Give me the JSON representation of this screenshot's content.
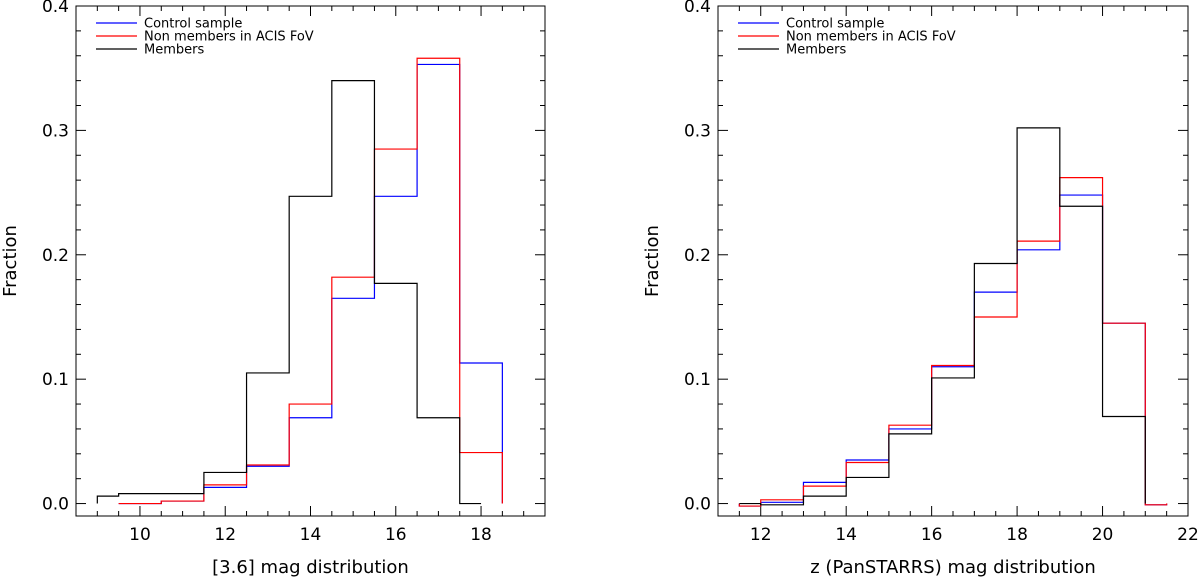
{
  "chart_data": [
    {
      "type": "histogram",
      "title": "",
      "xlabel": "[3.6] mag distribution",
      "ylabel": "Fraction",
      "xlim": [
        8.5,
        19.5
      ],
      "ylim": [
        -0.01,
        0.4
      ],
      "xticks": [
        10,
        12,
        14,
        16,
        18
      ],
      "xtick_labels": [
        "10",
        "12",
        "14",
        "16",
        "18"
      ],
      "yticks": [
        0.0,
        0.1,
        0.2,
        0.3,
        0.4
      ],
      "ytick_labels": [
        "0.0",
        "0.1",
        "0.2",
        "0.3",
        "0.4"
      ],
      "legend_position": "top-left",
      "series": [
        {
          "name": "Control sample",
          "color": "#0000ff",
          "bin_edges": [
            9.5,
            10.5,
            11.5,
            12.5,
            13.5,
            14.5,
            15.5,
            16.5,
            17.5,
            18.5
          ],
          "values": [
            0.0,
            0.002,
            0.013,
            0.03,
            0.069,
            0.165,
            0.247,
            0.353,
            0.113
          ]
        },
        {
          "name": "Non members in ACIS FoV",
          "color": "#ff0000",
          "bin_edges": [
            9.5,
            10.5,
            11.5,
            12.5,
            13.5,
            14.5,
            15.5,
            16.5,
            17.5,
            18.5
          ],
          "values": [
            0.0,
            0.002,
            0.015,
            0.031,
            0.08,
            0.182,
            0.285,
            0.358,
            0.041
          ]
        },
        {
          "name": "Members",
          "color": "#000000",
          "bin_edges": [
            9.0,
            9.5,
            10.5,
            11.5,
            12.5,
            13.5,
            14.5,
            15.5,
            16.5,
            17.5,
            18.0
          ],
          "values": [
            0.006,
            0.008,
            0.008,
            0.025,
            0.105,
            0.247,
            0.34,
            0.177,
            0.069,
            0.0
          ]
        }
      ]
    },
    {
      "type": "histogram",
      "title": "",
      "xlabel": "z (PanSTARRS) mag distribution",
      "ylabel": "Fraction",
      "xlim": [
        11,
        22
      ],
      "ylim": [
        -0.01,
        0.4
      ],
      "xticks": [
        12,
        14,
        16,
        18,
        20,
        22
      ],
      "xtick_labels": [
        "12",
        "14",
        "16",
        "18",
        "20",
        "22"
      ],
      "yticks": [
        0.0,
        0.1,
        0.2,
        0.3,
        0.4
      ],
      "ytick_labels": [
        "0.0",
        "0.1",
        "0.2",
        "0.3",
        "0.4"
      ],
      "legend_position": "top-left",
      "series": [
        {
          "name": "Control sample",
          "color": "#0000ff",
          "bin_edges": [
            11.5,
            12,
            13,
            14,
            15,
            16,
            17,
            18,
            19,
            20,
            21,
            21.5
          ],
          "values": [
            -0.002,
            0.001,
            0.017,
            0.035,
            0.06,
            0.11,
            0.17,
            0.204,
            0.248,
            0.145,
            -0.001
          ]
        },
        {
          "name": "Non members in ACIS FoV",
          "color": "#ff0000",
          "bin_edges": [
            11.5,
            12,
            13,
            14,
            15,
            16,
            17,
            18,
            19,
            20,
            21,
            21.5
          ],
          "values": [
            -0.002,
            0.003,
            0.014,
            0.033,
            0.063,
            0.111,
            0.15,
            0.211,
            0.262,
            0.145,
            -0.001
          ]
        },
        {
          "name": "Members",
          "color": "#000000",
          "bin_edges": [
            11.5,
            12,
            13,
            14,
            15,
            16,
            17,
            18,
            19,
            20,
            21
          ],
          "values": [
            0.0,
            -0.001,
            0.006,
            0.021,
            0.056,
            0.101,
            0.193,
            0.302,
            0.239,
            0.07
          ]
        }
      ]
    }
  ]
}
